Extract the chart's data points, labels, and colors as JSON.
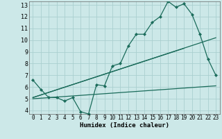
{
  "xlabel": "Humidex (Indice chaleur)",
  "ylabel": "",
  "bg_color": "#cce8e8",
  "grid_color": "#aacfcf",
  "line_color": "#1a6b5a",
  "xlim": [
    -0.5,
    23.5
  ],
  "ylim": [
    3.7,
    13.3
  ],
  "xticks": [
    0,
    1,
    2,
    3,
    4,
    5,
    6,
    7,
    8,
    9,
    10,
    11,
    12,
    13,
    14,
    15,
    16,
    17,
    18,
    19,
    20,
    21,
    22,
    23
  ],
  "yticks": [
    4,
    5,
    6,
    7,
    8,
    9,
    10,
    11,
    12,
    13
  ],
  "series1_x": [
    0,
    1,
    2,
    3,
    4,
    5,
    6,
    7,
    8,
    9,
    10,
    11,
    12,
    13,
    14,
    15,
    16,
    17,
    18,
    19,
    20,
    21,
    22,
    23
  ],
  "series1_y": [
    6.6,
    5.8,
    5.1,
    5.1,
    4.8,
    5.1,
    3.9,
    3.7,
    6.2,
    6.1,
    7.8,
    8.0,
    9.5,
    10.5,
    10.5,
    11.5,
    12.0,
    13.3,
    12.8,
    13.1,
    12.2,
    10.5,
    8.4,
    7.0
  ],
  "series2_x": [
    0,
    23
  ],
  "series2_y": [
    5.1,
    10.2
  ],
  "series3_x": [
    0,
    23
  ],
  "series3_y": [
    5.0,
    6.1
  ],
  "series4_x": [
    0,
    19
  ],
  "series4_y": [
    5.1,
    9.3
  ]
}
